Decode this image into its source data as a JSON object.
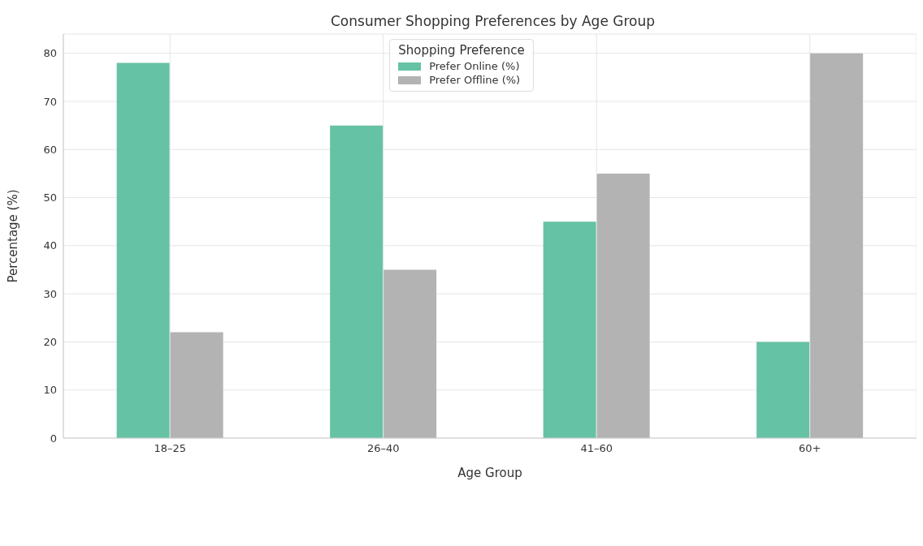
{
  "chart_data": {
    "type": "bar",
    "title": "Consumer Shopping Preferences by Age Group",
    "xlabel": "Age Group",
    "ylabel": "Percentage (%)",
    "legend_title": "Shopping Preference",
    "categories": [
      "18–25",
      "26–40",
      "41–60",
      "60+"
    ],
    "series": [
      {
        "name": "Prefer Online (%)",
        "color": "#66c2a5",
        "values": [
          78,
          65,
          45,
          20
        ]
      },
      {
        "name": "Prefer Offline (%)",
        "color": "#b3b3b3",
        "values": [
          22,
          35,
          55,
          80
        ]
      }
    ],
    "ylim": [
      0,
      84
    ],
    "yticks": [
      0,
      10,
      20,
      30,
      40,
      50,
      60,
      70,
      80
    ],
    "grid": true,
    "legend": "top"
  }
}
